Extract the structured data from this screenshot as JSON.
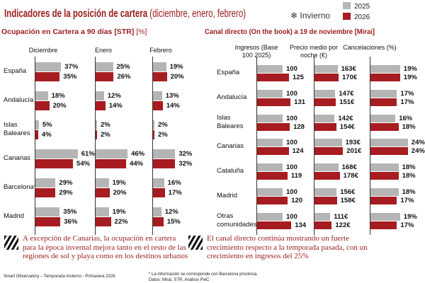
{
  "title": {
    "bold": "Indicadores de la posición de cartera",
    "rest": " (diciembre, enero, febrero)"
  },
  "season": {
    "icon": "snowflake-icon",
    "label": "Invierno"
  },
  "legend": [
    {
      "label": "2025",
      "color": "#b5b5b5"
    },
    {
      "label": "2026",
      "color": "#a61c20"
    }
  ],
  "chart_data": [
    {
      "type": "bar",
      "orientation": "horizontal",
      "title": "Ocupación en Cartera a 90 días [STR]",
      "unit": "[%]",
      "categories": [
        "España",
        "Andalucía",
        "Islas Baleares",
        "Canarias",
        "Barcelona*",
        "Madrid"
      ],
      "panels": [
        {
          "name": "Diciembre",
          "series": [
            {
              "name": "2025",
              "values": [
                37,
                18,
                5,
                61,
                29,
                35
              ]
            },
            {
              "name": "2026",
              "values": [
                35,
                20,
                4,
                54,
                29,
                36
              ]
            }
          ]
        },
        {
          "name": "Enero",
          "series": [
            {
              "name": "2025",
              "values": [
                25,
                12,
                2,
                46,
                19,
                19
              ]
            },
            {
              "name": "2026",
              "values": [
                26,
                14,
                2,
                44,
                20,
                22
              ]
            }
          ]
        },
        {
          "name": "Febrero",
          "series": [
            {
              "name": "2025",
              "values": [
                19,
                13,
                2,
                32,
                16,
                12
              ]
            },
            {
              "name": "2026",
              "values": [
                20,
                14,
                2,
                32,
                17,
                15
              ]
            }
          ]
        }
      ],
      "suffix": "%"
    },
    {
      "type": "bar",
      "orientation": "horizontal",
      "title": "Canal directo (On the book) a 19 de noviembre [Mirai]",
      "categories": [
        "España",
        "Andalucía",
        "Islas Baleares",
        "Canarias",
        "Cataluña",
        "Madrid",
        "Otras comunidades"
      ],
      "panels": [
        {
          "name": "Ingresos (Base 100 2025)",
          "suffix": "",
          "series": [
            {
              "name": "2025",
              "values": [
                100,
                100,
                100,
                100,
                100,
                100,
                100
              ]
            },
            {
              "name": "2026",
              "values": [
                125,
                131,
                128,
                124,
                119,
                120,
                134
              ]
            }
          ]
        },
        {
          "name": "Precio medio por noche (€)",
          "suffix": "€",
          "series": [
            {
              "name": "2025",
              "values": [
                163,
                147,
                142,
                193,
                168,
                156,
                111
              ]
            },
            {
              "name": "2026",
              "values": [
                170,
                151,
                154,
                201,
                178,
                158,
                122
              ]
            }
          ]
        },
        {
          "name": "Cancelaciones (%)",
          "suffix": "%",
          "series": [
            {
              "name": "2025",
              "values": [
                19,
                17,
                16,
                24,
                18,
                18,
                19
              ]
            },
            {
              "name": "2026",
              "values": [
                19,
                17,
                18,
                24,
                18,
                17,
                17
              ]
            }
          ]
        }
      ]
    }
  ],
  "notes": {
    "left": "A excepción de Canarias, la ocupación en cartera para la época invernal mejora tanto en el resto de las regiones de sol y playa como en los destinos urbanos",
    "right": "El canal directo continúa mostrando un fuerte crecimiento respecto a la temporada pasada, con un crecimiento en ingresos del 25%"
  },
  "footer": {
    "left": "Smart Observatory – Temporada Invierno - Primavera 2026",
    "note": "* La información se corresponde con Barcelona provincia.",
    "source": "Datos: Mirai, STR, Análisis PwC"
  }
}
